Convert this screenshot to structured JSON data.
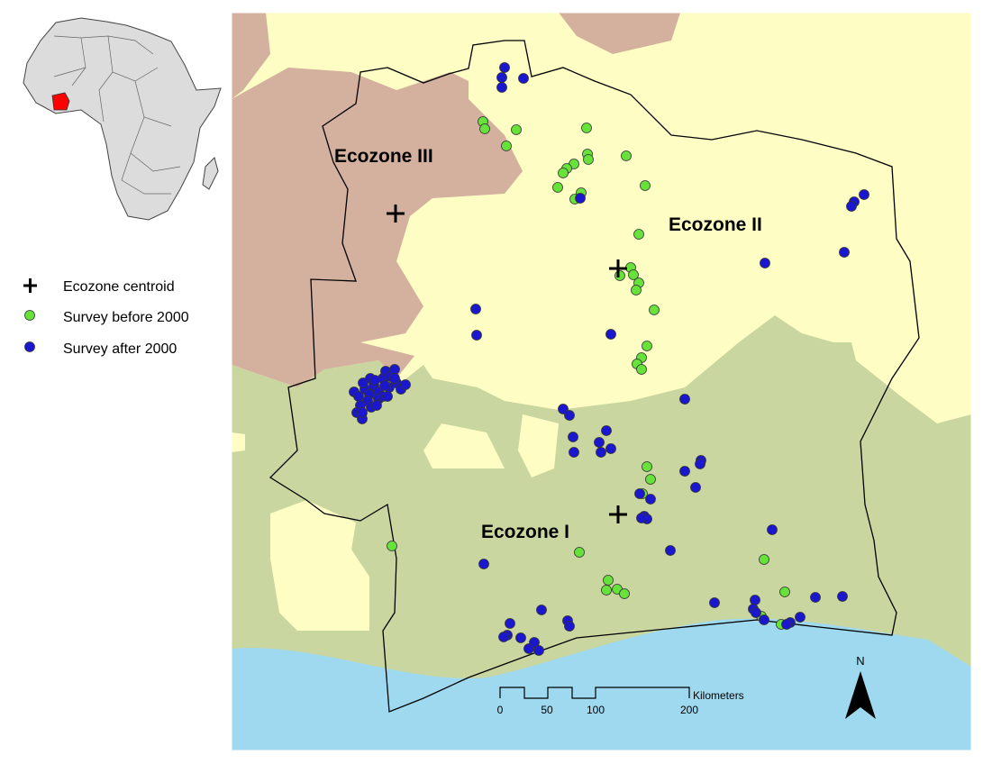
{
  "ecozones": [
    "Ecozone III",
    "Ecozone II",
    "Ecozone I"
  ],
  "legend": [
    "Ecozone centroid",
    "Survey before 2000",
    "Survey after 2000"
  ],
  "scale_bar": {
    "ticks": [
      "0",
      "50",
      "100",
      "200"
    ],
    "unit": "Kilometers"
  },
  "north_arrow": "N"
}
